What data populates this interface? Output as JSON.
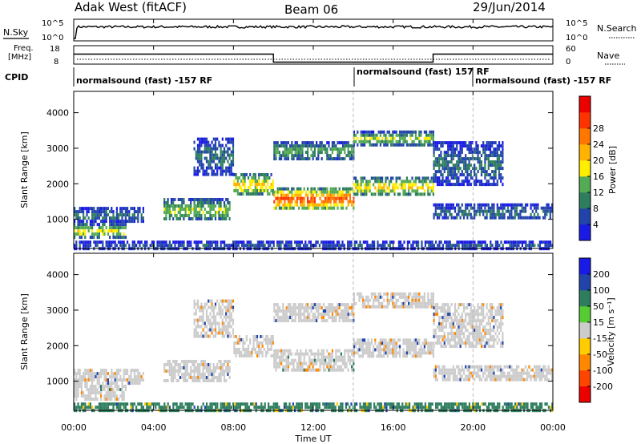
{
  "header": {
    "title": "Adak West (fitACF)",
    "beam": "Beam 06",
    "date": "29/Jun/2014"
  },
  "nsky_panel": {
    "left_label": "N.Sky",
    "right_label": "N.Search",
    "left_ticks": [
      "10^5",
      "10^0"
    ],
    "right_ticks": [
      "10^5",
      "10^0"
    ]
  },
  "freq_panel": {
    "left_label_1": "Freq.",
    "left_label_2": "[MHz]",
    "right_label": "Nave",
    "left_ticks": [
      "18",
      "8"
    ],
    "right_ticks": [
      "60",
      "0"
    ],
    "freq_steps": [
      {
        "start": 0.0,
        "end": 10.0,
        "value": 13.5
      },
      {
        "start": 10.0,
        "end": 18.0,
        "value": 8.3
      },
      {
        "start": 18.0,
        "end": 24.0,
        "value": 13.5
      }
    ]
  },
  "cpid_panel": {
    "label": "CPID",
    "segments": [
      {
        "text": "normalsound (fast) -157 RF",
        "start": 0.0
      },
      {
        "text": "normalsound (fast) 157 RF",
        "start": 14.0
      },
      {
        "text": "normalsound (fast) -157 RF",
        "start": 20.0
      }
    ]
  },
  "x_axis": {
    "label": "Time UT",
    "ticks": [
      "00:00",
      "04:00",
      "08:00",
      "12:00",
      "16:00",
      "20:00",
      "00:00"
    ],
    "range_hours": [
      0,
      24
    ]
  },
  "power_panel": {
    "ylabel": "Slant Range [km]",
    "yticks": [
      "1000",
      "2000",
      "3000",
      "4000"
    ],
    "colorbar_label": "Power [dB]",
    "colorbar_ticks": [
      "4",
      "8",
      "12",
      "16",
      "20",
      "24",
      "28"
    ],
    "colorbar_colors": [
      "#1a1ae6",
      "#2244aa",
      "#2e7d5e",
      "#55aa55",
      "#ffee00",
      "#ffb300",
      "#ff7700",
      "#ff3300",
      "#ee0000"
    ]
  },
  "velocity_panel": {
    "ylabel": "Slant Range [km]",
    "yticks": [
      "1000",
      "2000",
      "3000",
      "4000"
    ],
    "colorbar_label": "Velocity [m s⁻¹]",
    "colorbar_ticks": [
      "200",
      "100",
      "50",
      "15",
      "-15",
      "-50",
      "-100",
      "-200"
    ],
    "colorbar_colors": [
      "#1a1ae6",
      "#2244aa",
      "#2e7d5e",
      "#55cc33",
      "#cccccc",
      "#ffcc00",
      "#ff8800",
      "#ff4400",
      "#ee0000"
    ]
  },
  "chart_data": {
    "type": "heatmap",
    "title": "Adak West (fitACF)",
    "xlabel": "Time UT",
    "ylabel": "Slant Range [km]",
    "xlim": [
      0,
      24
    ],
    "ylim": [
      180,
      4600
    ],
    "bands": [
      {
        "t0": 0.0,
        "t1": 2.6,
        "r0": 500,
        "r1": 900,
        "power": 16,
        "velocity": -5
      },
      {
        "t0": 0.0,
        "t1": 3.5,
        "r0": 950,
        "r1": 1350,
        "power": 8,
        "velocity": 0
      },
      {
        "t0": 4.5,
        "t1": 7.8,
        "r0": 1000,
        "r1": 1600,
        "power": 14,
        "velocity": 0
      },
      {
        "t0": 6.0,
        "t1": 8.0,
        "r0": 2300,
        "r1": 3300,
        "power": 8,
        "velocity": 0
      },
      {
        "t0": 8.0,
        "t1": 10.0,
        "r0": 1700,
        "r1": 2300,
        "power": 18,
        "velocity": 0
      },
      {
        "t0": 10.0,
        "t1": 14.0,
        "r0": 1300,
        "r1": 1900,
        "power": 25,
        "velocity": -5
      },
      {
        "t0": 10.0,
        "t1": 14.0,
        "r0": 2700,
        "r1": 3200,
        "power": 12,
        "velocity": 0
      },
      {
        "t0": 14.0,
        "t1": 18.0,
        "r0": 1700,
        "r1": 2200,
        "power": 18,
        "velocity": 0
      },
      {
        "t0": 14.0,
        "t1": 18.0,
        "r0": 3100,
        "r1": 3500,
        "power": 14,
        "velocity": 0
      },
      {
        "t0": 18.0,
        "t1": 24.0,
        "r0": 1000,
        "r1": 1450,
        "power": 8,
        "velocity": 0
      },
      {
        "t0": 18.0,
        "t1": 21.5,
        "r0": 2000,
        "r1": 3200,
        "power": 8,
        "velocity": 0
      },
      {
        "t0": 0.0,
        "t1": 24.0,
        "r0": 180,
        "r1": 400,
        "power": 6,
        "velocity": 40
      }
    ],
    "dashed_lines_hours": [
      14.0,
      20.0
    ]
  }
}
